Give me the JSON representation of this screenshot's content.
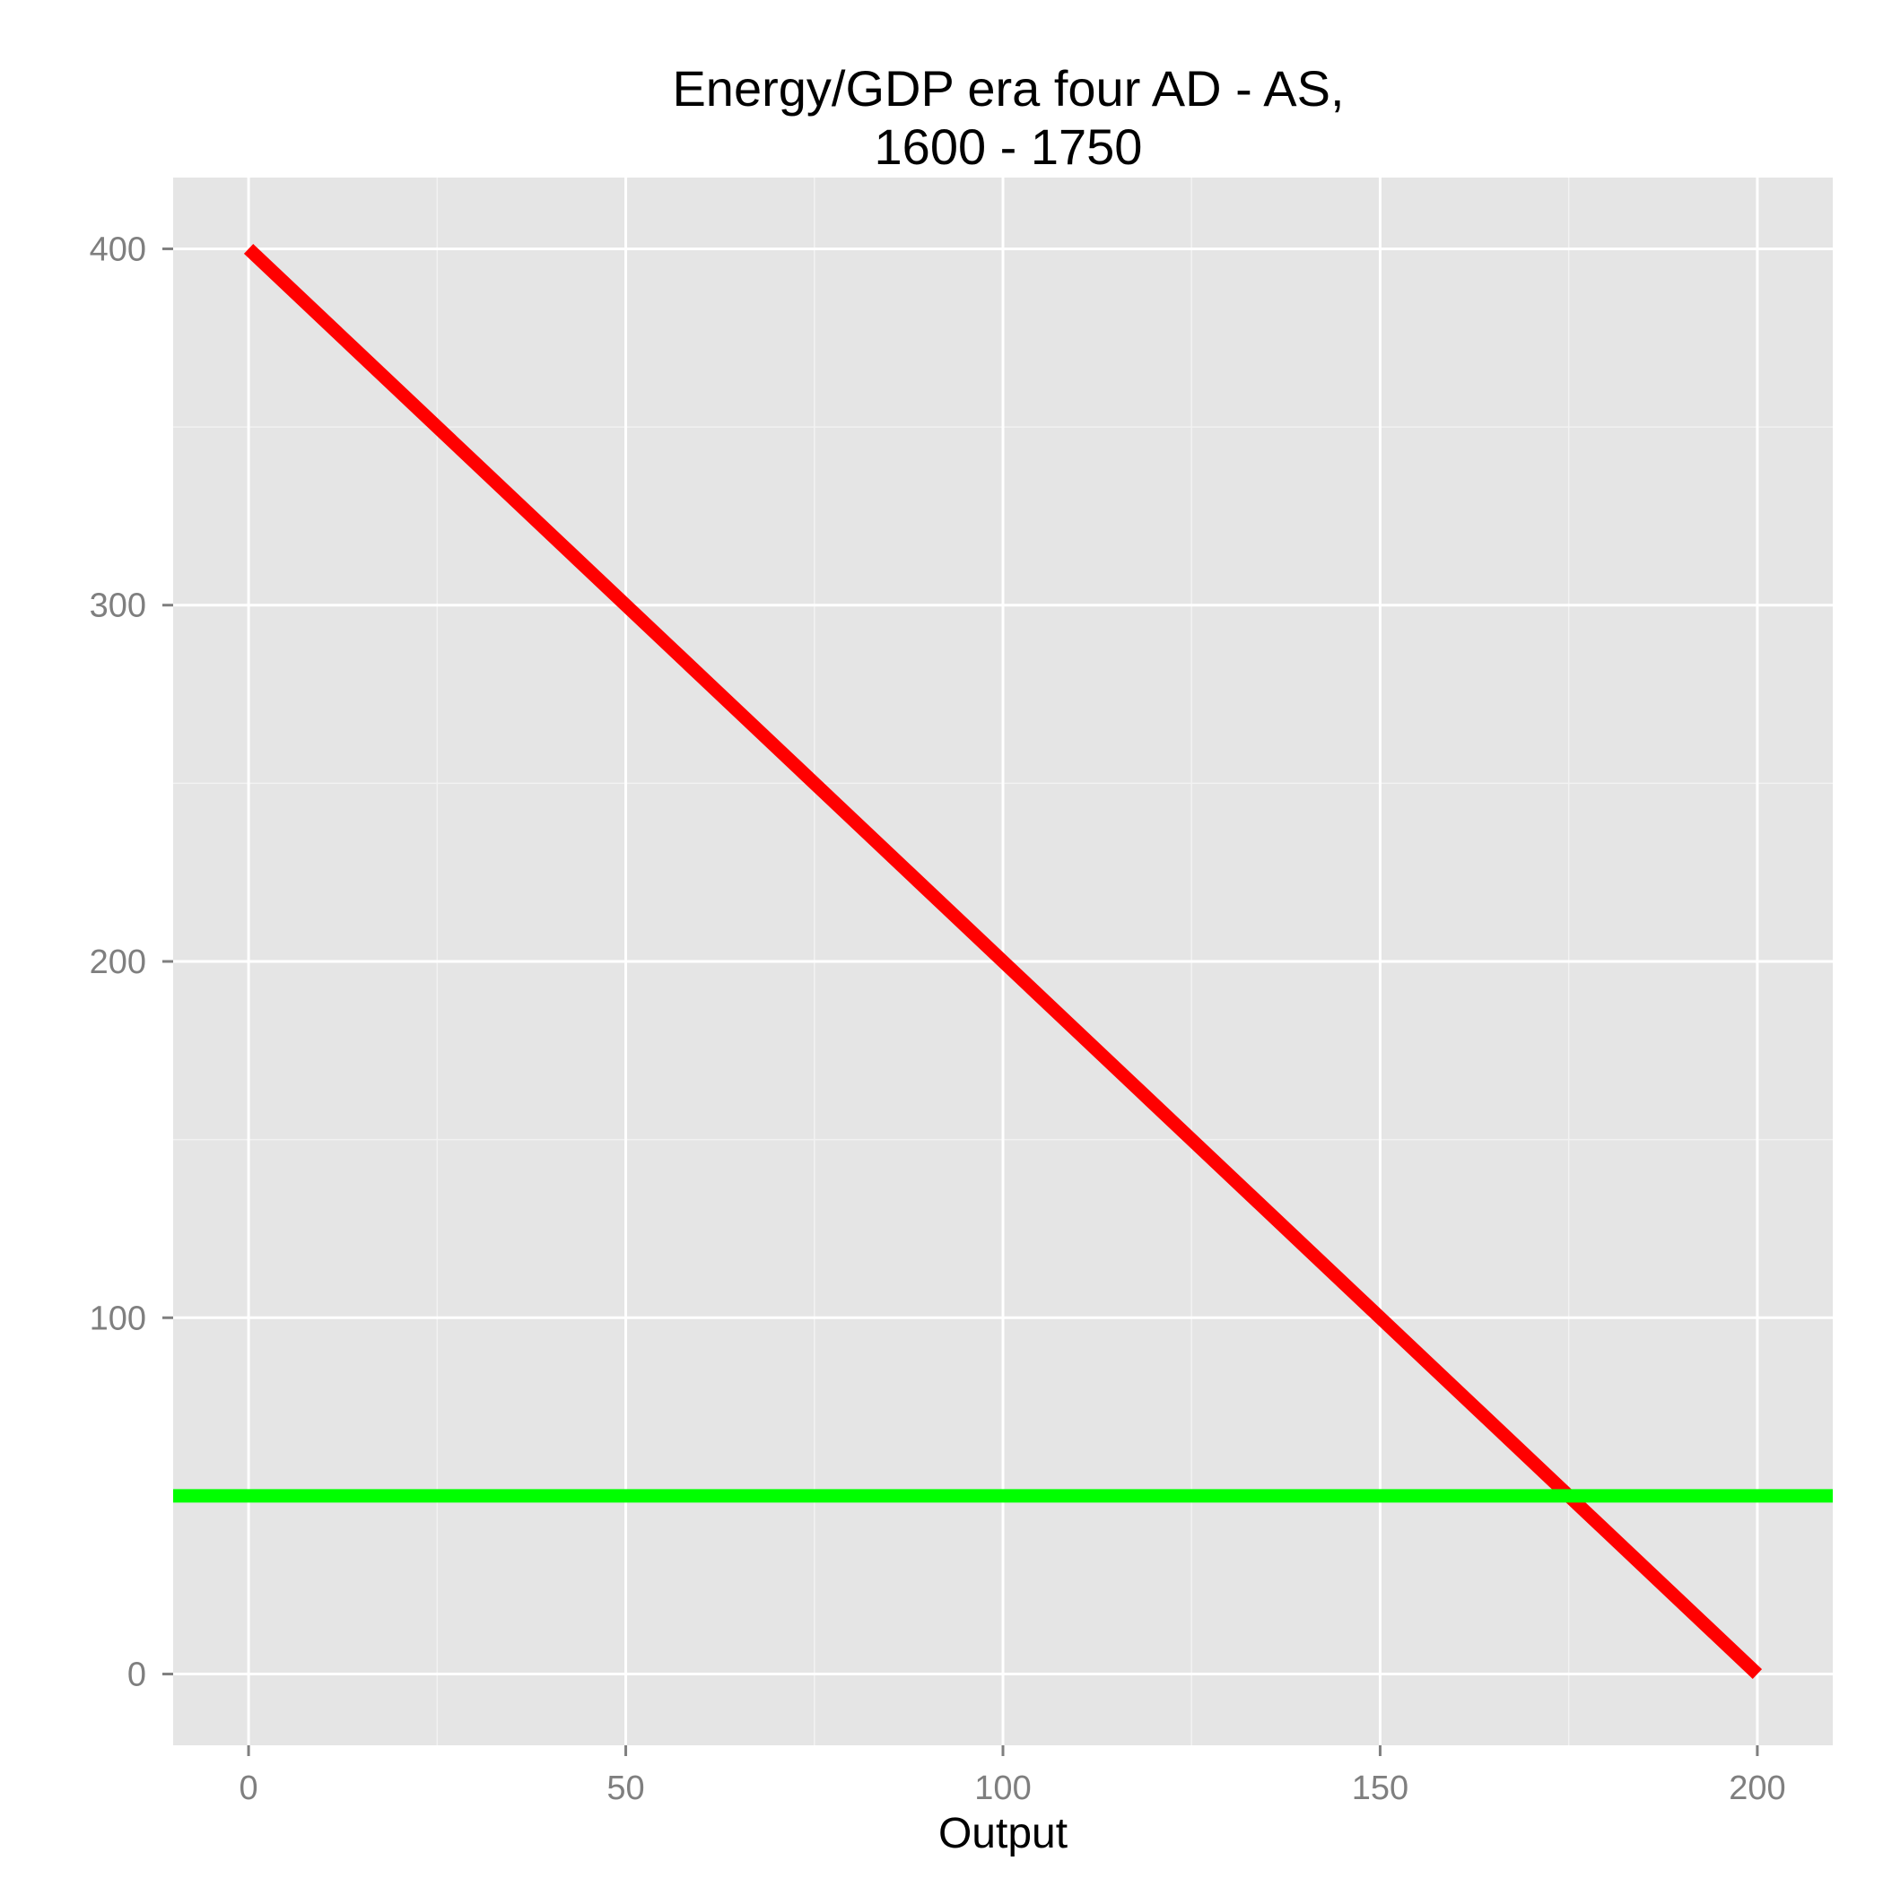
{
  "chart_data": {
    "type": "line",
    "title_lines": [
      "Energy/GDP era four AD - AS,",
      "1600 - 1750"
    ],
    "xlabel": "Output",
    "ylabel": "",
    "xlim": [
      -10,
      210
    ],
    "ylim": [
      -20,
      420
    ],
    "x_ticks": [
      0,
      50,
      100,
      150,
      200
    ],
    "x_tick_labels": [
      "0",
      "50",
      "100",
      "150",
      "200"
    ],
    "y_ticks": [
      0,
      100,
      200,
      300,
      400
    ],
    "y_tick_labels": [
      "0",
      "100",
      "200",
      "300",
      "400"
    ],
    "x_minor_ticks": [
      25,
      75,
      125,
      175
    ],
    "y_minor_ticks": [
      50,
      150,
      250,
      350
    ],
    "grid": true,
    "legend": "none",
    "panel_color": "#e5e5e5",
    "grid_color": "#ffffff",
    "series": [
      {
        "type": "line",
        "color": "#ff0000",
        "x": [
          0,
          200
        ],
        "y": [
          400,
          0
        ]
      },
      {
        "type": "hline",
        "color": "#00ff00",
        "y": 50
      }
    ]
  }
}
